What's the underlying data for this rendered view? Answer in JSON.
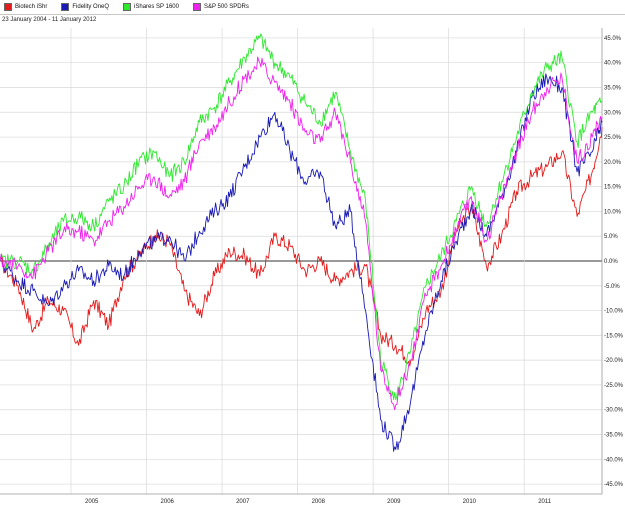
{
  "date_range": "23 January 2004 - 11 January 2012",
  "colors": {
    "biotech": "#e31b1b",
    "fidelity": "#1a1ab5",
    "ishares": "#2ee82e",
    "spdr": "#ee22ee",
    "grid": "#d9d9d9",
    "zero_line": "#333333"
  },
  "chart_data": {
    "type": "line",
    "xlim": [
      2004.06,
      2012.03
    ],
    "ylim": [
      -47,
      47
    ],
    "grid": true,
    "legend_position": "top-left",
    "y_ticks": [
      45,
      40,
      35,
      30,
      25,
      20,
      15,
      10,
      5,
      0,
      -5,
      -10,
      -15,
      -20,
      -25,
      -30,
      -35,
      -40,
      -45
    ],
    "y_tick_labels": [
      "45.0%",
      "40.0%",
      "35.0%",
      "30.0%",
      "25.0%",
      "20.0%",
      "15.0%",
      "10.0%",
      "5.0%",
      "0.0%",
      "-5.0%",
      "-10.0%",
      "-15.0%",
      "-20.0%",
      "-25.0%",
      "-30.0%",
      "-35.0%",
      "-40.0%",
      "-45.0%"
    ],
    "x_ticks": [
      2005,
      2006,
      2007,
      2008,
      2009,
      2010,
      2011
    ],
    "x_tick_labels": [
      "2005",
      "2006",
      "2007",
      "2008",
      "2009",
      "2010",
      "2011"
    ],
    "series": [
      {
        "name": "Biotech iShr",
        "x": [
          2004.06,
          2004.3,
          2004.5,
          2004.7,
          2004.9,
          2005.1,
          2005.3,
          2005.5,
          2005.7,
          2005.9,
          2006.1,
          2006.3,
          2006.5,
          2006.7,
          2006.9,
          2007.1,
          2007.3,
          2007.5,
          2007.7,
          2007.9,
          2008.1,
          2008.3,
          2008.5,
          2008.7,
          2008.9,
          2009.1,
          2009.3,
          2009.5,
          2009.7,
          2009.9,
          2010.1,
          2010.3,
          2010.5,
          2010.7,
          2010.9,
          2011.1,
          2011.3,
          2011.5,
          2011.7,
          2011.9,
          2012.03
        ],
        "y": [
          0,
          -5,
          -14,
          -8,
          -10,
          -17,
          -8,
          -13,
          -3,
          1,
          5,
          4,
          -6,
          -11,
          -3,
          2,
          1,
          -3,
          5,
          3,
          -2,
          0,
          -4,
          -2,
          -1,
          -15,
          -17,
          -20,
          -10,
          -6,
          6,
          11,
          -1,
          5,
          14,
          17,
          19,
          22,
          9,
          18,
          27
        ],
        "color": "#e31b1b"
      },
      {
        "name": "Fidelity OneQ",
        "x": [
          2004.06,
          2004.3,
          2004.5,
          2004.7,
          2004.9,
          2005.1,
          2005.3,
          2005.5,
          2005.7,
          2005.9,
          2006.1,
          2006.3,
          2006.5,
          2006.7,
          2006.9,
          2007.1,
          2007.3,
          2007.5,
          2007.7,
          2007.9,
          2008.1,
          2008.3,
          2008.5,
          2008.7,
          2008.9,
          2009.1,
          2009.3,
          2009.5,
          2009.7,
          2009.9,
          2010.1,
          2010.3,
          2010.5,
          2010.7,
          2010.9,
          2011.1,
          2011.3,
          2011.5,
          2011.7,
          2011.9,
          2012.03
        ],
        "y": [
          0,
          -4,
          -6,
          -9,
          -5,
          -2,
          -4,
          -1,
          -3,
          2,
          4,
          5,
          0,
          6,
          10,
          13,
          19,
          25,
          30,
          22,
          16,
          18,
          7,
          10,
          -10,
          -32,
          -38,
          -28,
          -14,
          -4,
          4,
          11,
          5,
          13,
          22,
          33,
          37,
          35,
          18,
          22,
          28
        ],
        "color": "#1a1ab5"
      },
      {
        "name": "iShares SP 1600",
        "x": [
          2004.06,
          2004.3,
          2004.5,
          2004.7,
          2004.9,
          2005.1,
          2005.3,
          2005.5,
          2005.7,
          2005.9,
          2006.1,
          2006.3,
          2006.5,
          2006.7,
          2006.9,
          2007.1,
          2007.3,
          2007.5,
          2007.7,
          2007.9,
          2008.1,
          2008.3,
          2008.5,
          2008.7,
          2008.9,
          2009.1,
          2009.3,
          2009.5,
          2009.7,
          2009.9,
          2010.1,
          2010.3,
          2010.5,
          2010.7,
          2010.9,
          2011.1,
          2011.3,
          2011.5,
          2011.7,
          2011.9,
          2012.03
        ],
        "y": [
          0,
          0,
          -2,
          3,
          8,
          9,
          7,
          12,
          15,
          20,
          22,
          17,
          20,
          28,
          31,
          36,
          41,
          45,
          40,
          37,
          32,
          28,
          34,
          22,
          12,
          -20,
          -28,
          -18,
          -5,
          1,
          8,
          15,
          7,
          16,
          25,
          34,
          39,
          41,
          24,
          30,
          32
        ],
        "color": "#2ee82e"
      },
      {
        "name": "S&P 500 SPDRs",
        "x": [
          2004.06,
          2004.3,
          2004.5,
          2004.7,
          2004.9,
          2005.1,
          2005.3,
          2005.5,
          2005.7,
          2005.9,
          2006.1,
          2006.3,
          2006.5,
          2006.7,
          2006.9,
          2007.1,
          2007.3,
          2007.5,
          2007.7,
          2007.9,
          2008.1,
          2008.3,
          2008.5,
          2008.7,
          2008.9,
          2009.1,
          2009.3,
          2009.5,
          2009.7,
          2009.9,
          2010.1,
          2010.3,
          2010.5,
          2010.7,
          2010.9,
          2011.1,
          2011.3,
          2011.5,
          2011.7,
          2011.9,
          2012.03
        ],
        "y": [
          0,
          -1,
          -3,
          2,
          6,
          6,
          4,
          8,
          11,
          15,
          17,
          13,
          16,
          24,
          27,
          32,
          37,
          40,
          36,
          32,
          26,
          24,
          30,
          20,
          8,
          -22,
          -29,
          -20,
          -7,
          -1,
          6,
          13,
          4,
          13,
          22,
          30,
          35,
          37,
          20,
          25,
          29
        ],
        "color": "#ee22ee"
      }
    ]
  }
}
